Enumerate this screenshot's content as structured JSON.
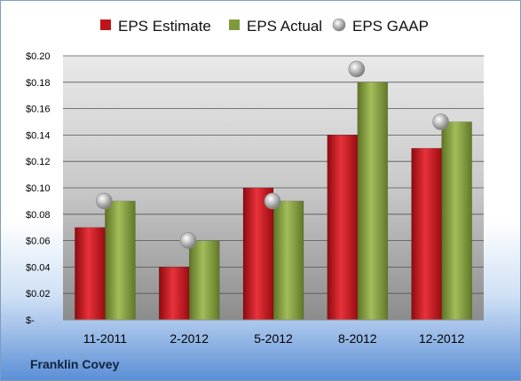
{
  "company": "Franklin Covey",
  "chart_data": {
    "type": "bar",
    "categories": [
      "11-2011",
      "2-2012",
      "5-2012",
      "8-2012",
      "12-2012"
    ],
    "series": [
      {
        "name": "EPS Estimate",
        "values": [
          0.07,
          0.04,
          0.1,
          0.14,
          0.13
        ],
        "color": "#c0141b",
        "kind": "bar"
      },
      {
        "name": "EPS Actual",
        "values": [
          0.09,
          0.06,
          0.09,
          0.18,
          0.15
        ],
        "color": "#7f9a3a",
        "kind": "bar"
      },
      {
        "name": "EPS GAAP",
        "values": [
          0.09,
          0.06,
          0.09,
          0.19,
          0.15
        ],
        "color": "#a8a8a8",
        "kind": "marker"
      }
    ],
    "yticks": [
      "$-",
      "$0.02",
      "$0.04",
      "$0.06",
      "$0.08",
      "$0.10",
      "$0.12",
      "$0.14",
      "$0.16",
      "$0.18",
      "$0.20"
    ],
    "ylim": [
      0,
      0.2
    ],
    "grid": true,
    "legend_position": "top"
  }
}
